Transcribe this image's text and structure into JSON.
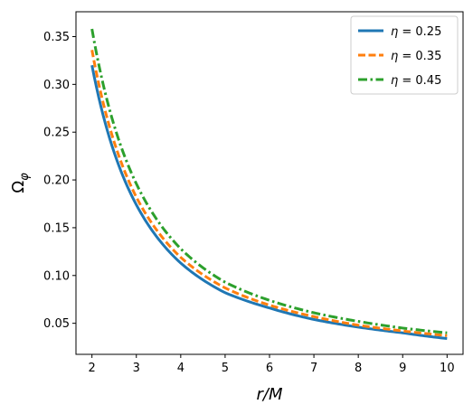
{
  "chart_data": {
    "type": "line",
    "xlabel": "r/M",
    "ylabel": "Ω",
    "ylabel_sub": "φ",
    "xlim": [
      1.64,
      10.36
    ],
    "ylim": [
      0.0175,
      0.376
    ],
    "xticks": [
      2,
      3,
      4,
      5,
      6,
      7,
      8,
      9,
      10
    ],
    "yticks": [
      0.05,
      0.1,
      0.15,
      0.2,
      0.25,
      0.3,
      0.35
    ],
    "ytick_labels": [
      "0.05",
      "0.10",
      "0.15",
      "0.20",
      "0.25",
      "0.30",
      "0.35"
    ],
    "grid": false,
    "legend_position": "top-right",
    "x": [
      2,
      3,
      4,
      5,
      6,
      7,
      8,
      9,
      10
    ],
    "series": [
      {
        "name": "η = 0.25",
        "legend_eta": "η",
        "legend_value": " = 0.25",
        "color": "#1f77b4",
        "style": "solid",
        "values": [
          0.32,
          0.174,
          0.113,
          0.082,
          0.066,
          0.054,
          0.046,
          0.04,
          0.034
        ]
      },
      {
        "name": "η = 0.35",
        "legend_eta": "η",
        "legend_value": " = 0.35",
        "color": "#ff7f0e",
        "style": "dashed",
        "values": [
          0.336,
          0.182,
          0.119,
          0.087,
          0.069,
          0.057,
          0.048,
          0.042,
          0.037
        ]
      },
      {
        "name": "η = 0.45",
        "legend_eta": "η",
        "legend_value": " = 0.45",
        "color": "#2ca02c",
        "style": "dashdot",
        "values": [
          0.358,
          0.196,
          0.128,
          0.093,
          0.074,
          0.061,
          0.052,
          0.045,
          0.04
        ]
      }
    ]
  }
}
